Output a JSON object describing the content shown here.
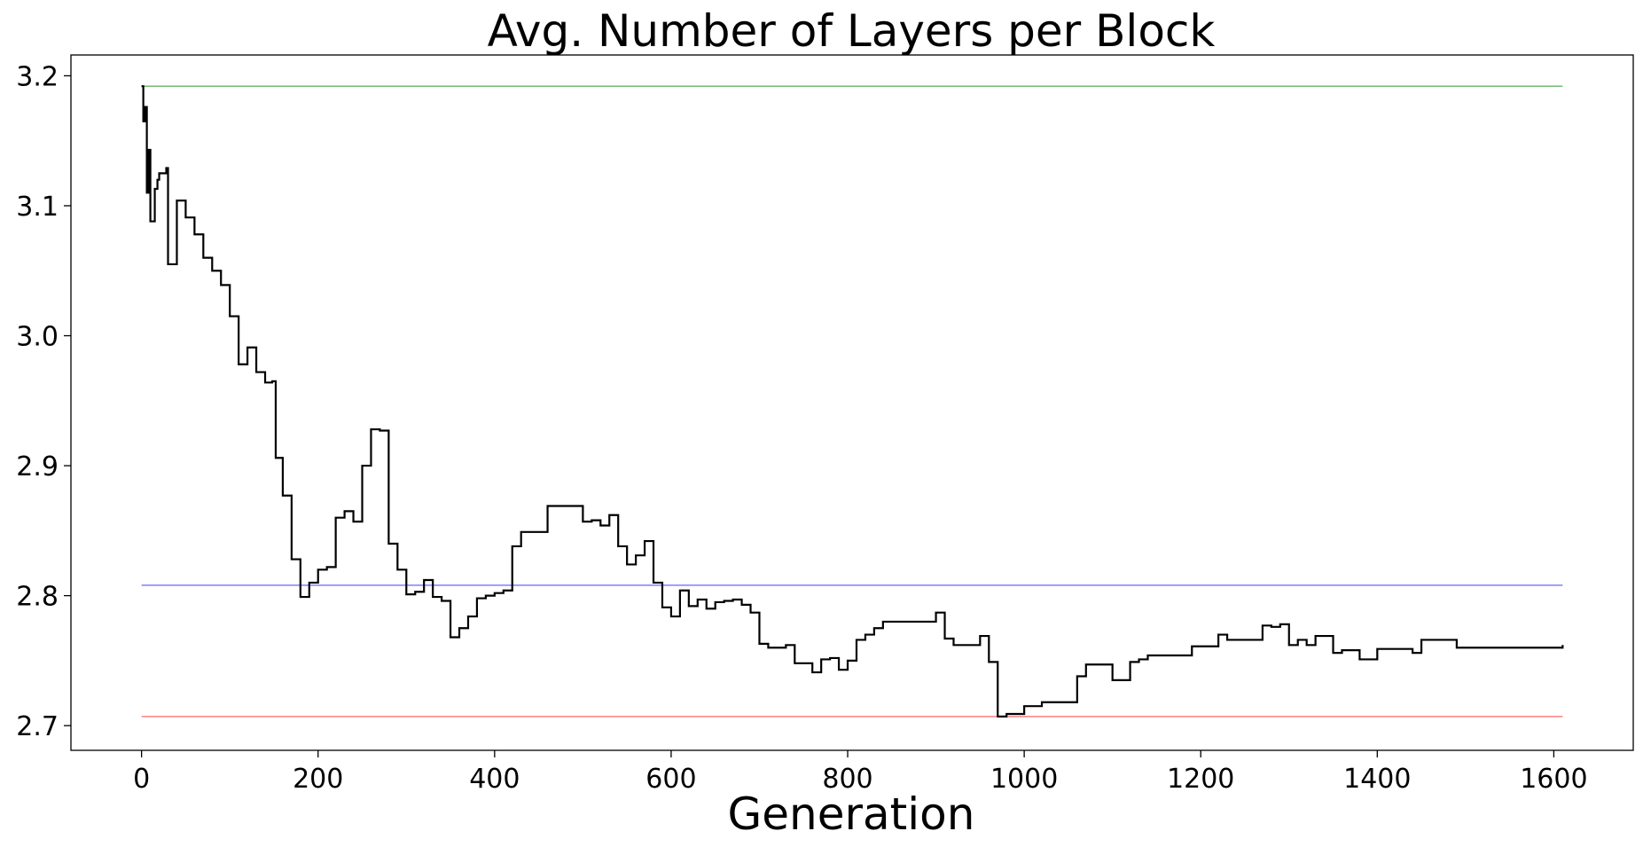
{
  "chart_data": {
    "type": "line",
    "title": "Avg. Number of Layers per Block",
    "xlabel": "Generation",
    "ylabel": "",
    "xlim": [
      -80,
      1690
    ],
    "ylim": [
      2.681,
      3.216
    ],
    "xticks": [
      0,
      200,
      400,
      600,
      800,
      1000,
      1200,
      1400,
      1600
    ],
    "yticks": [
      2.7,
      2.8,
      2.9,
      3.0,
      3.1,
      3.2
    ],
    "xtick_labels": [
      "0",
      "200",
      "400",
      "600",
      "800",
      "1000",
      "1200",
      "1400",
      "1600"
    ],
    "ytick_labels": [
      "2.7",
      "2.8",
      "2.9",
      "3.0",
      "3.1",
      "3.2"
    ],
    "grid": false,
    "legend": "none",
    "series": [
      {
        "color": "#008000",
        "style": "reference",
        "x": [
          0,
          1610
        ],
        "y": [
          3.192,
          3.192
        ]
      },
      {
        "color": "#0000ff",
        "style": "reference",
        "x": [
          0,
          1610
        ],
        "y": [
          2.808,
          2.808
        ]
      },
      {
        "color": "#ff0000",
        "style": "reference",
        "x": [
          0,
          1610
        ],
        "y": [
          2.707,
          2.707
        ]
      },
      {
        "color": "#000000",
        "style": "step",
        "x": [
          0,
          2,
          4,
          6,
          8,
          10,
          15,
          18,
          20,
          25,
          28,
          30,
          40,
          50,
          60,
          65,
          70,
          80,
          90,
          100,
          110,
          120,
          130,
          140,
          148,
          152,
          160,
          170,
          180,
          190,
          200,
          210,
          220,
          230,
          240,
          250,
          260,
          270,
          280,
          290,
          300,
          310,
          320,
          330,
          340,
          350,
          360,
          370,
          380,
          390,
          400,
          410,
          420,
          430,
          460,
          500,
          510,
          520,
          530,
          540,
          550,
          560,
          570,
          580,
          590,
          600,
          610,
          620,
          630,
          640,
          650,
          660,
          670,
          680,
          690,
          700,
          710,
          720,
          730,
          740,
          760,
          770,
          780,
          790,
          800,
          810,
          820,
          830,
          840,
          900,
          910,
          920,
          950,
          960,
          970,
          980,
          1000,
          1020,
          1060,
          1070,
          1080,
          1100,
          1120,
          1130,
          1140,
          1150,
          1190,
          1220,
          1230,
          1270,
          1280,
          1290,
          1300,
          1310,
          1320,
          1330,
          1350,
          1360,
          1380,
          1400,
          1440,
          1450,
          1490,
          1560,
          1610
        ],
        "y": [
          3.192,
          3.165,
          3.176,
          3.11,
          3.143,
          3.088,
          3.113,
          3.12,
          3.125,
          3.125,
          3.129,
          3.055,
          3.104,
          3.091,
          3.078,
          3.078,
          3.06,
          3.05,
          3.039,
          3.015,
          2.978,
          2.991,
          2.972,
          2.964,
          2.965,
          2.906,
          2.877,
          2.828,
          2.799,
          2.81,
          2.82,
          2.822,
          2.86,
          2.865,
          2.857,
          2.9,
          2.928,
          2.927,
          2.84,
          2.82,
          2.801,
          2.803,
          2.812,
          2.799,
          2.796,
          2.768,
          2.775,
          2.784,
          2.798,
          2.8,
          2.802,
          2.804,
          2.838,
          2.849,
          2.869,
          2.857,
          2.858,
          2.854,
          2.862,
          2.838,
          2.824,
          2.831,
          2.842,
          2.81,
          2.791,
          2.784,
          2.804,
          2.792,
          2.797,
          2.79,
          2.795,
          2.796,
          2.797,
          2.793,
          2.787,
          2.763,
          2.76,
          2.76,
          2.762,
          2.748,
          2.741,
          2.751,
          2.752,
          2.743,
          2.75,
          2.766,
          2.77,
          2.775,
          2.78,
          2.787,
          2.767,
          2.762,
          2.769,
          2.749,
          2.707,
          2.709,
          2.715,
          2.718,
          2.738,
          2.747,
          2.747,
          2.735,
          2.749,
          2.751,
          2.754,
          2.754,
          2.761,
          2.77,
          2.766,
          2.777,
          2.776,
          2.778,
          2.762,
          2.766,
          2.762,
          2.769,
          2.756,
          2.758,
          2.751,
          2.759,
          2.756,
          2.766,
          2.76,
          2.76,
          2.762
        ]
      }
    ]
  }
}
